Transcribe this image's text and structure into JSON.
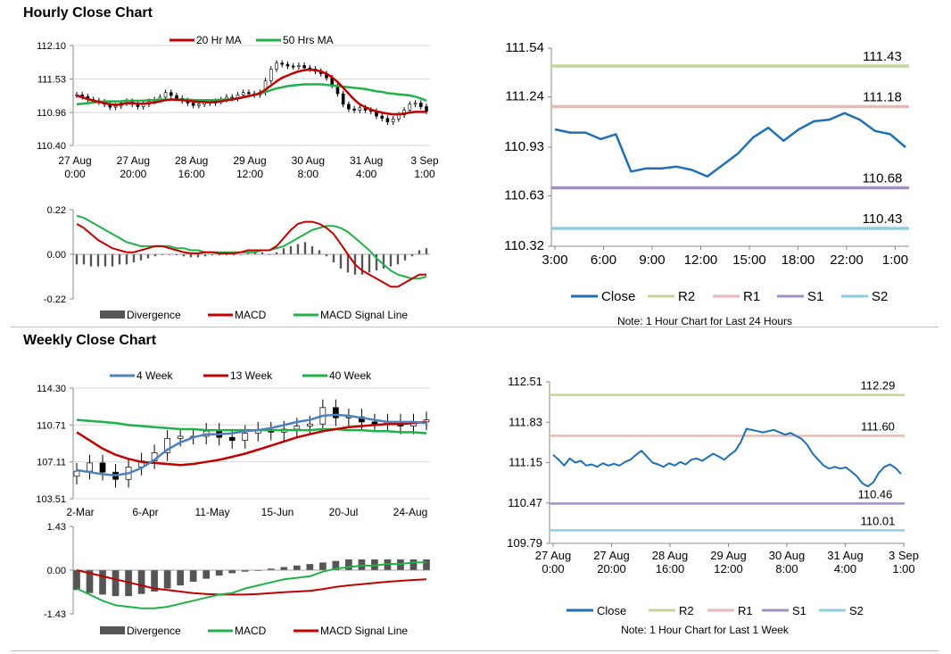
{
  "sections": {
    "hourly_title": "Hourly Close Chart",
    "weekly_title": "Weekly Close Chart"
  },
  "chart_data": [
    {
      "id": "hourly-price",
      "type": "line",
      "title": "",
      "ylim": [
        110.4,
        112.1
      ],
      "yticks": [
        "112.10",
        "111.53",
        "110.96",
        "110.40"
      ],
      "xticks": [
        [
          "27 Aug",
          "0:00"
        ],
        [
          "27 Aug",
          "20:00"
        ],
        [
          "28 Aug",
          "16:00"
        ],
        [
          "29 Aug",
          "12:00"
        ],
        [
          "30 Aug",
          "8:00"
        ],
        [
          "31 Aug",
          "4:00"
        ],
        [
          "3 Sep",
          "1:00"
        ]
      ],
      "legend": [
        "20 Hr MA",
        "50 Hrs MA"
      ],
      "colors": {
        "ma20": "#c00000",
        "ma50": "#22b04a",
        "candle": "#000000"
      },
      "candles_close": [
        111.26,
        111.23,
        111.18,
        111.16,
        111.14,
        111.1,
        111.05,
        111.07,
        111.12,
        111.15,
        111.1,
        111.06,
        111.1,
        111.15,
        111.18,
        111.22,
        111.3,
        111.25,
        111.2,
        111.16,
        111.12,
        111.08,
        111.1,
        111.14,
        111.12,
        111.15,
        111.18,
        111.22,
        111.2,
        111.26,
        111.3,
        111.28,
        111.26,
        111.3,
        111.5,
        111.7,
        111.8,
        111.78,
        111.75,
        111.74,
        111.76,
        111.72,
        111.7,
        111.66,
        111.62,
        111.55,
        111.42,
        111.28,
        111.1,
        111.02,
        111.0,
        111.04,
        111.0,
        110.98,
        110.9,
        110.86,
        110.8,
        110.85,
        110.92,
        111.0,
        111.1,
        111.12,
        111.06,
        110.98
      ],
      "ma20": [
        111.25,
        111.22,
        111.19,
        111.16,
        111.14,
        111.12,
        111.1,
        111.09,
        111.1,
        111.12,
        111.12,
        111.11,
        111.11,
        111.12,
        111.13,
        111.15,
        111.17,
        111.18,
        111.18,
        111.17,
        111.16,
        111.15,
        111.14,
        111.14,
        111.13,
        111.14,
        111.15,
        111.17,
        111.18,
        111.2,
        111.22,
        111.24,
        111.26,
        111.29,
        111.35,
        111.42,
        111.49,
        111.55,
        111.59,
        111.63,
        111.66,
        111.68,
        111.69,
        111.68,
        111.66,
        111.62,
        111.56,
        111.48,
        111.38,
        111.28,
        111.18,
        111.1,
        111.05,
        111.01,
        110.98,
        110.96,
        110.94,
        110.93,
        110.93,
        110.94,
        110.96,
        110.97,
        110.97,
        110.97
      ],
      "ma50": [
        111.1,
        111.11,
        111.12,
        111.13,
        111.14,
        111.15,
        111.15,
        111.15,
        111.15,
        111.16,
        111.16,
        111.16,
        111.16,
        111.17,
        111.17,
        111.18,
        111.18,
        111.18,
        111.18,
        111.18,
        111.18,
        111.17,
        111.17,
        111.17,
        111.17,
        111.17,
        111.18,
        111.18,
        111.19,
        111.2,
        111.22,
        111.24,
        111.26,
        111.28,
        111.31,
        111.34,
        111.37,
        111.39,
        111.41,
        111.42,
        111.43,
        111.44,
        111.44,
        111.44,
        111.44,
        111.43,
        111.42,
        111.41,
        111.4,
        111.39,
        111.38,
        111.37,
        111.36,
        111.34,
        111.32,
        111.31,
        111.29,
        111.28,
        111.27,
        111.26,
        111.25,
        111.23,
        111.2,
        111.16
      ]
    },
    {
      "id": "hourly-macd",
      "type": "bar",
      "ylim": [
        -0.22,
        0.22
      ],
      "yticks": [
        "0.22",
        "0.00",
        "-0.22"
      ],
      "legend": [
        "Divergence",
        "MACD",
        "MACD Signal Line"
      ],
      "colors": {
        "divergence": "#555555",
        "macd": "#c00000",
        "signal": "#22b04a"
      },
      "macd": [
        0.15,
        0.13,
        0.1,
        0.07,
        0.05,
        0.03,
        0.02,
        0.01,
        0.01,
        0.02,
        0.03,
        0.04,
        0.04,
        0.03,
        0.02,
        0.01,
        0.005,
        0.005,
        0.01,
        0.01,
        0.005,
        0.005,
        0.005,
        0.01,
        0.02,
        0.02,
        0.02,
        0.02,
        0.04,
        0.08,
        0.12,
        0.15,
        0.16,
        0.16,
        0.15,
        0.13,
        0.1,
        0.05,
        0.0,
        -0.05,
        -0.08,
        -0.1,
        -0.12,
        -0.14,
        -0.16,
        -0.16,
        -0.14,
        -0.12,
        -0.1,
        -0.1
      ],
      "signal": [
        0.19,
        0.18,
        0.16,
        0.14,
        0.12,
        0.1,
        0.08,
        0.06,
        0.05,
        0.04,
        0.04,
        0.04,
        0.04,
        0.04,
        0.03,
        0.03,
        0.02,
        0.02,
        0.01,
        0.01,
        0.01,
        0.01,
        0.01,
        0.01,
        0.01,
        0.01,
        0.02,
        0.02,
        0.03,
        0.04,
        0.06,
        0.08,
        0.1,
        0.12,
        0.13,
        0.14,
        0.14,
        0.13,
        0.11,
        0.08,
        0.05,
        0.02,
        -0.02,
        -0.05,
        -0.08,
        -0.1,
        -0.11,
        -0.12,
        -0.12,
        -0.11
      ],
      "divergence": [
        -0.05,
        -0.05,
        -0.06,
        -0.06,
        -0.06,
        -0.06,
        -0.05,
        -0.05,
        -0.04,
        -0.03,
        -0.02,
        -0.01,
        0.0,
        0.0,
        -0.005,
        -0.01,
        -0.015,
        -0.015,
        -0.01,
        -0.005,
        -0.005,
        -0.005,
        -0.005,
        0.0,
        0.005,
        0.01,
        0.01,
        0.0,
        0.01,
        0.03,
        0.04,
        0.05,
        0.06,
        0.04,
        0.02,
        -0.01,
        -0.04,
        -0.07,
        -0.09,
        -0.1,
        -0.1,
        -0.09,
        -0.08,
        -0.07,
        -0.06,
        -0.05,
        -0.03,
        -0.01,
        0.02,
        0.03
      ]
    },
    {
      "id": "hourly-close-24h",
      "type": "line",
      "ylim": [
        110.32,
        111.54
      ],
      "yticks": [
        "111.54",
        "111.24",
        "110.93",
        "110.63",
        "110.32"
      ],
      "xticks": [
        "3:00",
        "6:00",
        "9:00",
        "12:00",
        "15:00",
        "18:00",
        "22:00",
        "1:00"
      ],
      "close": [
        111.04,
        111.02,
        111.02,
        110.98,
        111.01,
        110.78,
        110.8,
        110.8,
        110.81,
        110.79,
        110.75,
        110.82,
        110.89,
        110.99,
        111.05,
        110.97,
        111.04,
        111.09,
        111.1,
        111.14,
        111.1,
        111.03,
        111.01,
        110.93
      ],
      "levels": [
        {
          "name": "R2",
          "value": 111.43,
          "label": "111.43",
          "color": "#c4d79b"
        },
        {
          "name": "R1",
          "value": 111.18,
          "label": "111.18",
          "color": "#e6b8b7"
        },
        {
          "name": "S1",
          "value": 110.68,
          "label": "110.68",
          "color": "#a08fc4"
        },
        {
          "name": "S2",
          "value": 110.43,
          "label": "110.43",
          "color": "#92cddc"
        }
      ],
      "legend": [
        "Close",
        "R2",
        "R1",
        "S1",
        "S2"
      ],
      "close_color": "#1f6fb2",
      "note": "Note: 1 Hour Chart for Last 24 Hours"
    },
    {
      "id": "weekly-price",
      "type": "line",
      "ylim": [
        103.51,
        114.3
      ],
      "yticks": [
        "114.30",
        "110.71",
        "107.11",
        "103.51"
      ],
      "xticks": [
        "2-Mar",
        "6-Apr",
        "11-May",
        "15-Jun",
        "20-Jul",
        "24-Aug"
      ],
      "legend": [
        "4 Week",
        "13 Week",
        "40 Week"
      ],
      "colors": {
        "w4": "#4f81bd",
        "w13": "#c00000",
        "w40": "#22b04a",
        "candle": "#000000"
      },
      "candles_close": [
        106.2,
        107.0,
        106.1,
        105.4,
        106.6,
        107.2,
        108.0,
        109.4,
        109.6,
        109.6,
        110.1,
        109.5,
        109.2,
        109.9,
        110.2,
        110.0,
        110.3,
        110.6,
        110.8,
        112.4,
        111.4,
        111.5,
        111.0,
        110.8,
        111.0,
        110.6,
        111.0,
        111.2
      ],
      "w4": [
        106.3,
        106.1,
        105.9,
        105.8,
        106.0,
        106.5,
        107.3,
        108.3,
        109.0,
        109.5,
        109.8,
        109.8,
        109.9,
        110.1,
        110.2,
        110.4,
        110.7,
        111.0,
        111.2,
        111.6,
        111.7,
        111.6,
        111.4,
        111.2,
        111.0,
        111.0,
        111.0,
        110.9
      ],
      "w13": [
        110.0,
        109.2,
        108.4,
        107.8,
        107.4,
        107.1,
        107.0,
        106.9,
        106.8,
        106.9,
        107.1,
        107.3,
        107.6,
        107.9,
        108.3,
        108.7,
        109.1,
        109.5,
        109.8,
        110.1,
        110.3,
        110.5,
        110.6,
        110.7,
        110.8,
        110.8,
        110.9,
        111.0
      ],
      "w40": [
        111.2,
        111.1,
        111.0,
        110.9,
        110.7,
        110.6,
        110.5,
        110.4,
        110.3,
        110.3,
        110.2,
        110.2,
        110.2,
        110.2,
        110.2,
        110.2,
        110.2,
        110.2,
        110.2,
        110.3,
        110.3,
        110.2,
        110.2,
        110.1,
        110.1,
        110.0,
        110.0,
        109.9
      ]
    },
    {
      "id": "weekly-macd",
      "type": "bar",
      "ylim": [
        -1.43,
        1.43
      ],
      "yticks": [
        "1.43",
        "0.00",
        "-1.43"
      ],
      "legend": [
        "Divergence",
        "MACD",
        "MACD Signal Line"
      ],
      "colors": {
        "divergence": "#555555",
        "macd": "#22b04a",
        "signal": "#c00000"
      },
      "macd": [
        -0.6,
        -0.8,
        -1.0,
        -1.15,
        -1.2,
        -1.25,
        -1.25,
        -1.2,
        -1.1,
        -1.0,
        -0.9,
        -0.8,
        -0.75,
        -0.6,
        -0.5,
        -0.4,
        -0.3,
        -0.25,
        -0.2,
        -0.05,
        0.05,
        0.1,
        0.15,
        0.15,
        0.2,
        0.2,
        0.25,
        0.25
      ],
      "signal": [
        0.0,
        -0.1,
        -0.2,
        -0.3,
        -0.4,
        -0.5,
        -0.6,
        -0.65,
        -0.7,
        -0.75,
        -0.78,
        -0.8,
        -0.8,
        -0.8,
        -0.78,
        -0.75,
        -0.72,
        -0.7,
        -0.68,
        -0.62,
        -0.55,
        -0.5,
        -0.46,
        -0.42,
        -0.38,
        -0.35,
        -0.32,
        -0.3
      ],
      "divergence": [
        -0.65,
        -0.75,
        -0.8,
        -0.85,
        -0.85,
        -0.78,
        -0.7,
        -0.6,
        -0.5,
        -0.38,
        -0.28,
        -0.18,
        -0.1,
        -0.05,
        0.0,
        0.05,
        0.1,
        0.15,
        0.2,
        0.25,
        0.3,
        0.35,
        0.35,
        0.35,
        0.35,
        0.35,
        0.35,
        0.35
      ]
    },
    {
      "id": "weekly-close-1w",
      "type": "line",
      "ylim": [
        109.79,
        112.51
      ],
      "yticks": [
        "112.51",
        "111.83",
        "111.15",
        "110.47",
        "109.79"
      ],
      "xticks": [
        [
          "27 Aug",
          "0:00"
        ],
        [
          "27 Aug",
          "20:00"
        ],
        [
          "28 Aug",
          "16:00"
        ],
        [
          "29 Aug",
          "12:00"
        ],
        [
          "30 Aug",
          "8:00"
        ],
        [
          "31 Aug",
          "4:00"
        ],
        [
          "3 Sep",
          "1:00"
        ]
      ],
      "close": [
        111.28,
        111.2,
        111.1,
        111.22,
        111.15,
        111.18,
        111.1,
        111.12,
        111.08,
        111.14,
        111.1,
        111.13,
        111.1,
        111.16,
        111.2,
        111.28,
        111.35,
        111.25,
        111.15,
        111.12,
        111.08,
        111.14,
        111.1,
        111.16,
        111.12,
        111.2,
        111.22,
        111.18,
        111.24,
        111.3,
        111.25,
        111.2,
        111.28,
        111.35,
        111.5,
        111.72,
        111.7,
        111.68,
        111.66,
        111.68,
        111.7,
        111.66,
        111.62,
        111.65,
        111.6,
        111.55,
        111.45,
        111.3,
        111.2,
        111.1,
        111.05,
        111.08,
        111.05,
        111.07,
        111.0,
        110.92,
        110.8,
        110.75,
        110.82,
        110.98,
        111.08,
        111.12,
        111.06,
        110.96
      ],
      "levels": [
        {
          "name": "R2",
          "value": 112.29,
          "label": "112.29",
          "color": "#c4d79b"
        },
        {
          "name": "R1",
          "value": 111.6,
          "label": "111.60",
          "color": "#e6b8b7"
        },
        {
          "name": "S1",
          "value": 110.46,
          "label": "110.46",
          "color": "#a08fc4"
        },
        {
          "name": "S2",
          "value": 110.01,
          "label": "110.01",
          "color": "#92cddc"
        }
      ],
      "legend": [
        "Close",
        "R2",
        "R1",
        "S1",
        "S2"
      ],
      "close_color": "#1f6fb2",
      "note": "Note: 1 Hour Chart for Last 1 Week"
    }
  ]
}
